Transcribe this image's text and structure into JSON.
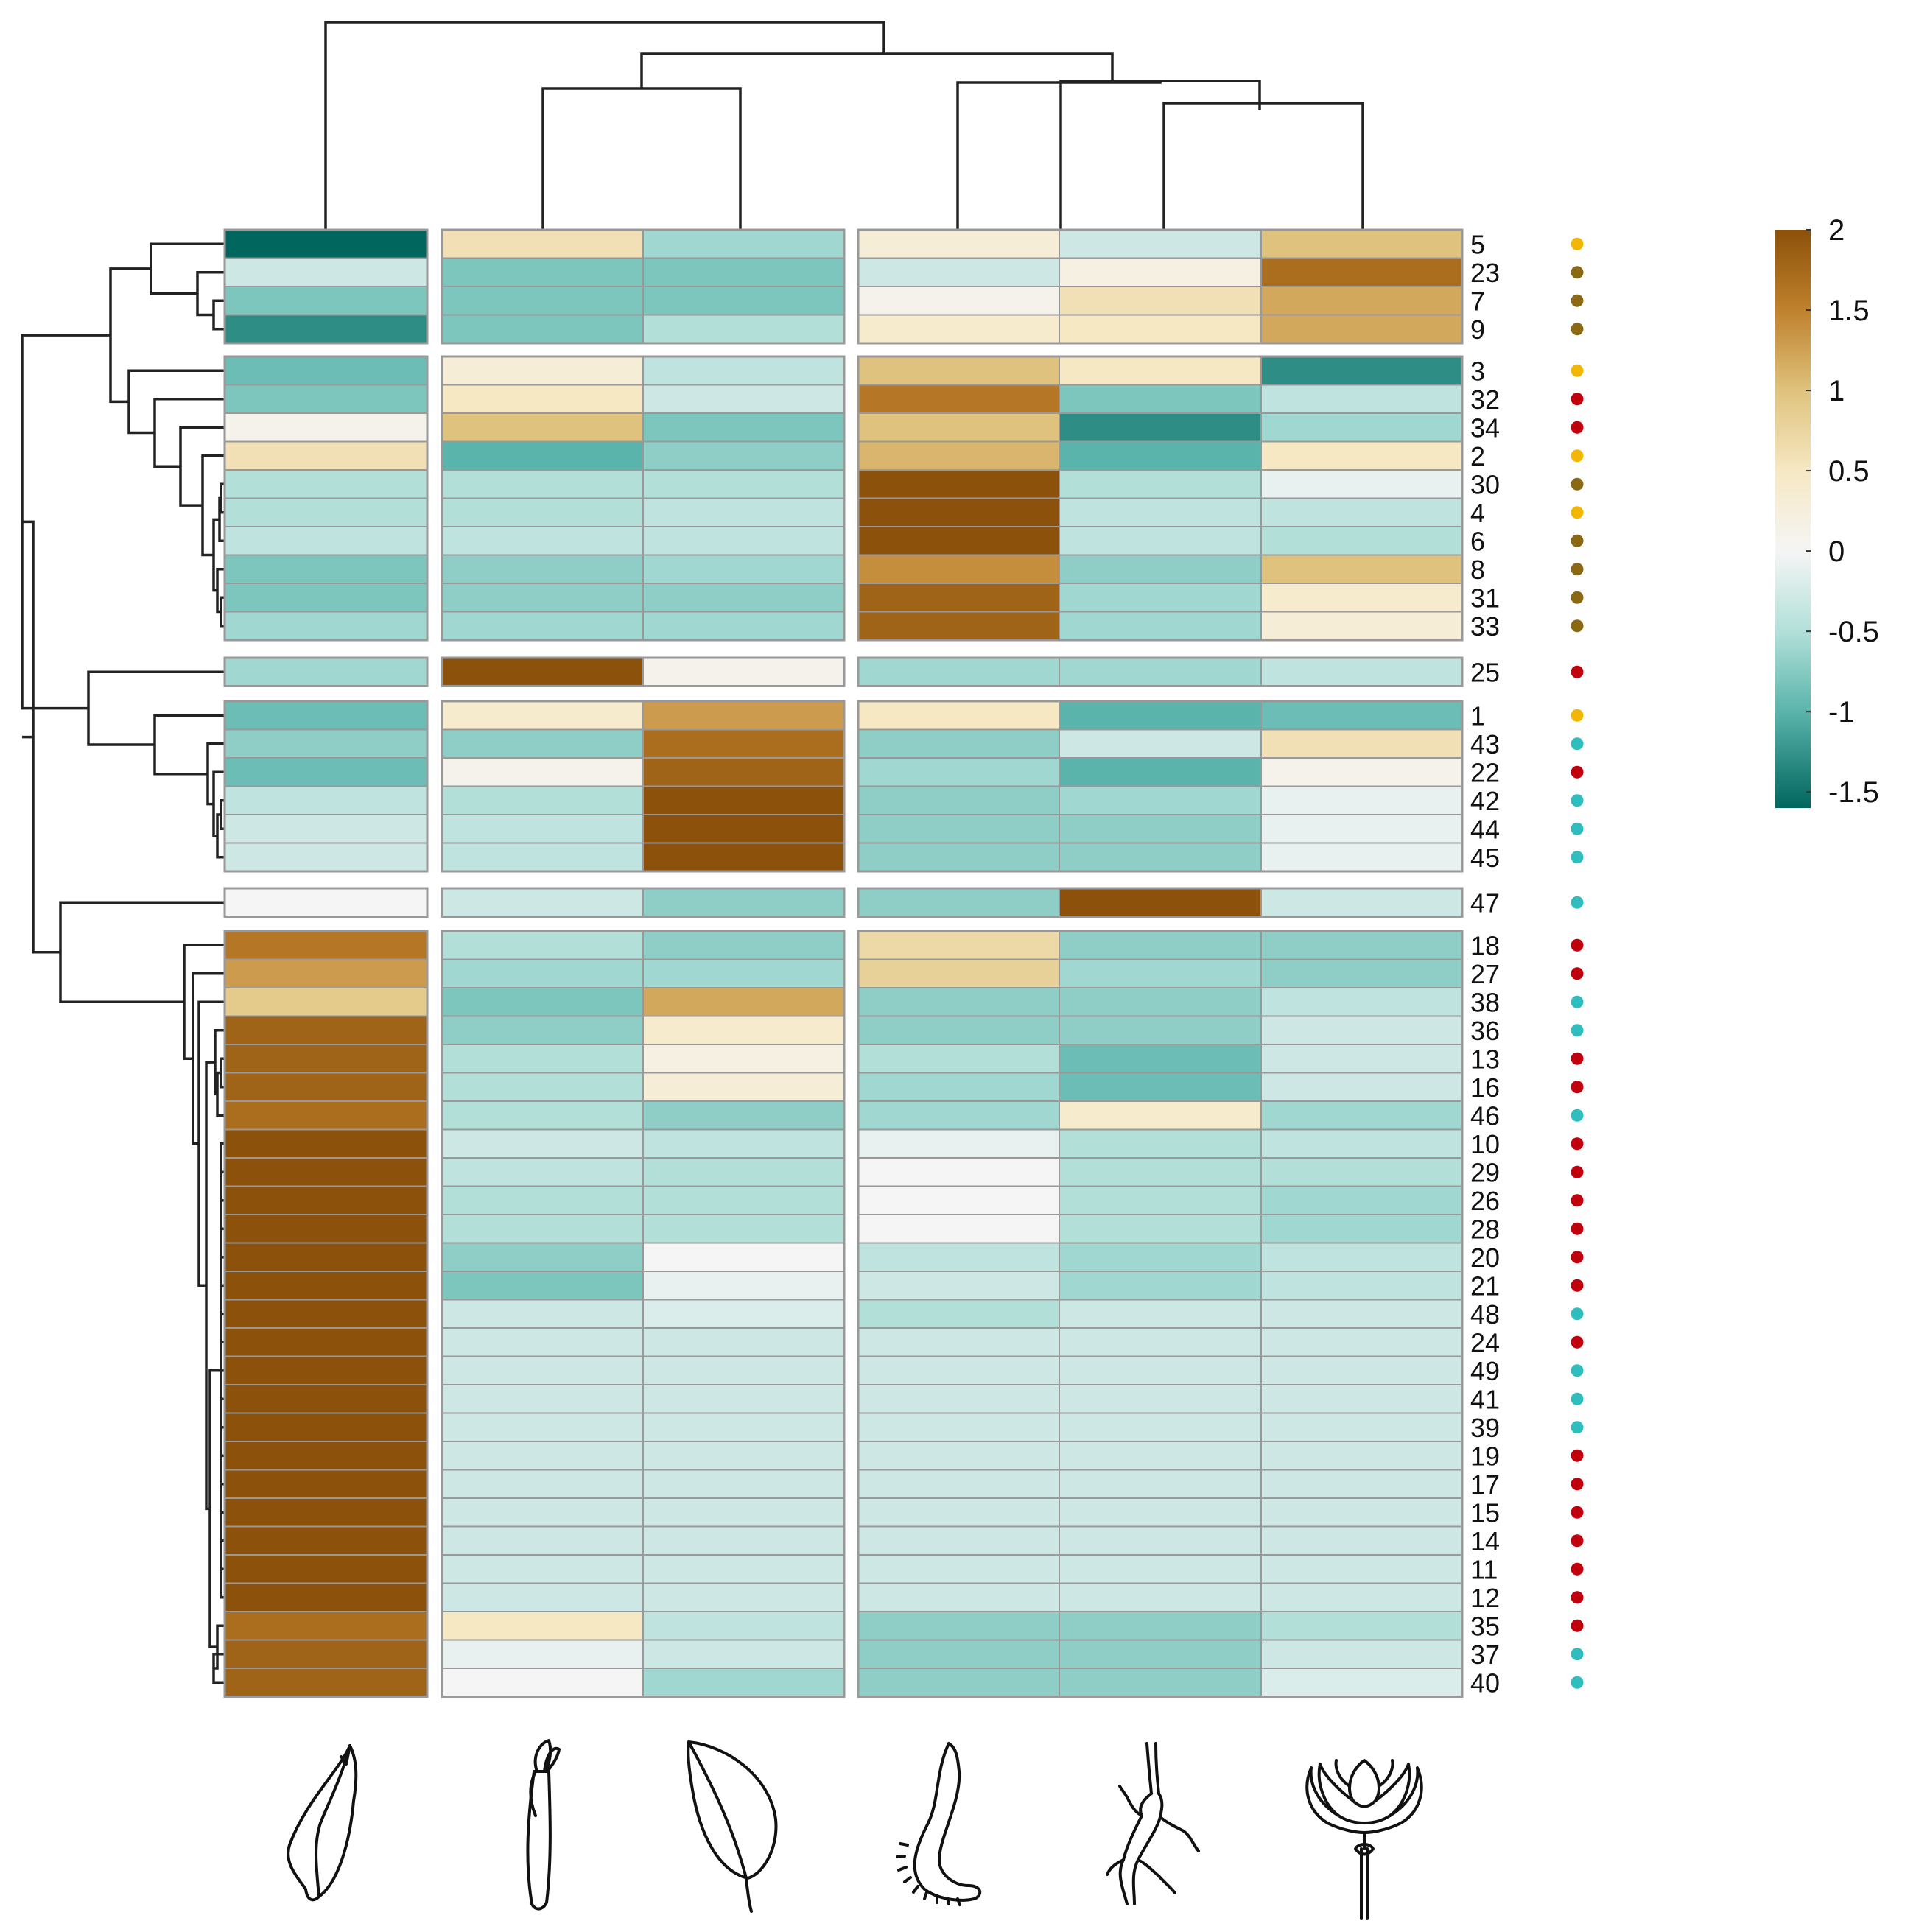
{
  "chart_data": {
    "type": "heatmap",
    "title": "",
    "xlabel": "",
    "ylabel": "",
    "columns": [
      {
        "key": "sample-1",
        "icon": "bract-icon"
      },
      {
        "key": "sample-2",
        "icon": "stamen-icon"
      },
      {
        "key": "sample-3",
        "icon": "leaf-icon"
      },
      {
        "key": "sample-4",
        "icon": "rhizome-icon"
      },
      {
        "key": "sample-5",
        "icon": "root-icon"
      },
      {
        "key": "sample-6",
        "icon": "flower-icon"
      }
    ],
    "column_groups": [
      [
        0
      ],
      [
        1,
        2
      ],
      [
        3,
        4,
        5
      ]
    ],
    "row_groups": [
      {
        "rows": [
          {
            "label": "5",
            "values": [
              -1.6,
              0.6,
              -0.6,
              0.3,
              -0.3,
              1.0
            ],
            "dot": "orange"
          },
          {
            "label": "23",
            "values": [
              -0.3,
              -0.8,
              -0.8,
              -0.3,
              0.2,
              1.7
            ],
            "dot": "olive"
          },
          {
            "label": "7",
            "values": [
              -0.8,
              -0.8,
              -0.8,
              0.1,
              0.6,
              1.2
            ],
            "dot": "olive"
          },
          {
            "label": "9",
            "values": [
              -1.3,
              -0.8,
              -0.5,
              0.4,
              0.5,
              1.2
            ],
            "dot": "olive"
          }
        ]
      },
      {
        "rows": [
          {
            "label": "3",
            "values": [
              -0.9,
              0.3,
              -0.4,
              1.0,
              0.5,
              -1.3
            ],
            "dot": "orange"
          },
          {
            "label": "32",
            "values": [
              -0.8,
              0.5,
              -0.3,
              1.6,
              -0.8,
              -0.4
            ],
            "dot": "red"
          },
          {
            "label": "34",
            "values": [
              0.1,
              1.0,
              -0.8,
              1.0,
              -1.3,
              -0.6
            ],
            "dot": "red"
          },
          {
            "label": "2",
            "values": [
              0.6,
              -1.0,
              -0.7,
              1.1,
              -1.0,
              0.5
            ],
            "dot": "orange"
          },
          {
            "label": "30",
            "values": [
              -0.5,
              -0.5,
              -0.5,
              2.0,
              -0.5,
              -0.1
            ],
            "dot": "olive"
          },
          {
            "label": "4",
            "values": [
              -0.5,
              -0.5,
              -0.4,
              2.0,
              -0.4,
              -0.4
            ],
            "dot": "orange"
          },
          {
            "label": "6",
            "values": [
              -0.4,
              -0.4,
              -0.4,
              2.0,
              -0.4,
              -0.5
            ],
            "dot": "olive"
          },
          {
            "label": "8",
            "values": [
              -0.8,
              -0.7,
              -0.6,
              1.4,
              -0.7,
              1.0
            ],
            "dot": "olive"
          },
          {
            "label": "31",
            "values": [
              -0.8,
              -0.7,
              -0.7,
              1.8,
              -0.6,
              0.4
            ],
            "dot": "olive"
          },
          {
            "label": "33",
            "values": [
              -0.6,
              -0.6,
              -0.6,
              1.8,
              -0.6,
              0.3
            ],
            "dot": "olive"
          }
        ]
      },
      {
        "rows": [
          {
            "label": "25",
            "values": [
              -0.6,
              2.0,
              0.1,
              -0.6,
              -0.6,
              -0.4
            ],
            "dot": "red"
          }
        ]
      },
      {
        "rows": [
          {
            "label": "1",
            "values": [
              -0.9,
              0.4,
              1.3,
              0.5,
              -1.0,
              -0.9
            ],
            "dot": "orange"
          },
          {
            "label": "43",
            "values": [
              -0.7,
              -0.7,
              1.7,
              -0.7,
              -0.3,
              0.6
            ],
            "dot": "teal"
          },
          {
            "label": "22",
            "values": [
              -0.9,
              0.1,
              1.8,
              -0.6,
              -1.0,
              0.1
            ],
            "dot": "red"
          },
          {
            "label": "42",
            "values": [
              -0.4,
              -0.5,
              2.0,
              -0.7,
              -0.6,
              -0.1
            ],
            "dot": "teal"
          },
          {
            "label": "44",
            "values": [
              -0.3,
              -0.4,
              2.0,
              -0.7,
              -0.7,
              -0.1
            ],
            "dot": "teal"
          },
          {
            "label": "45",
            "values": [
              -0.3,
              -0.4,
              2.0,
              -0.7,
              -0.7,
              -0.1
            ],
            "dot": "teal"
          }
        ]
      },
      {
        "rows": [
          {
            "label": "47",
            "values": [
              0.0,
              -0.3,
              -0.7,
              -0.7,
              2.0,
              -0.3
            ],
            "dot": "teal"
          }
        ]
      },
      {
        "rows": [
          {
            "label": "18",
            "values": [
              1.6,
              -0.5,
              -0.7,
              0.7,
              -0.7,
              -0.7
            ],
            "dot": "red"
          },
          {
            "label": "27",
            "values": [
              1.3,
              -0.6,
              -0.6,
              0.8,
              -0.6,
              -0.7
            ],
            "dot": "red"
          },
          {
            "label": "38",
            "values": [
              0.9,
              -0.8,
              1.2,
              -0.7,
              -0.7,
              -0.4
            ],
            "dot": "teal"
          },
          {
            "label": "36",
            "values": [
              1.8,
              -0.7,
              0.4,
              -0.7,
              -0.7,
              -0.3
            ],
            "dot": "teal"
          },
          {
            "label": "13",
            "values": [
              1.8,
              -0.5,
              0.2,
              -0.5,
              -0.9,
              -0.3
            ],
            "dot": "red"
          },
          {
            "label": "16",
            "values": [
              1.8,
              -0.5,
              0.3,
              -0.6,
              -0.9,
              -0.3
            ],
            "dot": "red"
          },
          {
            "label": "46",
            "values": [
              1.7,
              -0.5,
              -0.7,
              -0.6,
              0.4,
              -0.6
            ],
            "dot": "teal"
          },
          {
            "label": "10",
            "values": [
              2.0,
              -0.3,
              -0.4,
              -0.1,
              -0.5,
              -0.4
            ],
            "dot": "red"
          },
          {
            "label": "29",
            "values": [
              2.0,
              -0.4,
              -0.5,
              0.0,
              -0.5,
              -0.5
            ],
            "dot": "red"
          },
          {
            "label": "26",
            "values": [
              2.0,
              -0.5,
              -0.5,
              0.0,
              -0.5,
              -0.6
            ],
            "dot": "red"
          },
          {
            "label": "28",
            "values": [
              2.0,
              -0.5,
              -0.5,
              0.0,
              -0.5,
              -0.6
            ],
            "dot": "red"
          },
          {
            "label": "20",
            "values": [
              2.0,
              -0.7,
              0.0,
              -0.4,
              -0.6,
              -0.4
            ],
            "dot": "red"
          },
          {
            "label": "21",
            "values": [
              2.0,
              -0.8,
              -0.1,
              -0.3,
              -0.6,
              -0.4
            ],
            "dot": "red"
          },
          {
            "label": "48",
            "values": [
              2.0,
              -0.3,
              -0.2,
              -0.5,
              -0.3,
              -0.3
            ],
            "dot": "teal"
          },
          {
            "label": "24",
            "values": [
              2.0,
              -0.3,
              -0.3,
              -0.3,
              -0.3,
              -0.3
            ],
            "dot": "red"
          },
          {
            "label": "49",
            "values": [
              2.0,
              -0.3,
              -0.3,
              -0.3,
              -0.3,
              -0.3
            ],
            "dot": "teal"
          },
          {
            "label": "41",
            "values": [
              2.0,
              -0.3,
              -0.3,
              -0.3,
              -0.3,
              -0.3
            ],
            "dot": "teal"
          },
          {
            "label": "39",
            "values": [
              2.0,
              -0.3,
              -0.3,
              -0.3,
              -0.3,
              -0.3
            ],
            "dot": "teal"
          },
          {
            "label": "19",
            "values": [
              2.0,
              -0.3,
              -0.3,
              -0.3,
              -0.3,
              -0.3
            ],
            "dot": "red"
          },
          {
            "label": "17",
            "values": [
              2.0,
              -0.3,
              -0.3,
              -0.3,
              -0.3,
              -0.3
            ],
            "dot": "red"
          },
          {
            "label": "15",
            "values": [
              2.0,
              -0.3,
              -0.3,
              -0.3,
              -0.3,
              -0.3
            ],
            "dot": "red"
          },
          {
            "label": "14",
            "values": [
              2.0,
              -0.3,
              -0.3,
              -0.3,
              -0.3,
              -0.3
            ],
            "dot": "red"
          },
          {
            "label": "11",
            "values": [
              2.0,
              -0.3,
              -0.3,
              -0.3,
              -0.3,
              -0.3
            ],
            "dot": "red"
          },
          {
            "label": "12",
            "values": [
              2.0,
              -0.3,
              -0.3,
              -0.3,
              -0.3,
              -0.3
            ],
            "dot": "red"
          },
          {
            "label": "35",
            "values": [
              1.7,
              0.5,
              -0.4,
              -0.7,
              -0.7,
              -0.5
            ],
            "dot": "red"
          },
          {
            "label": "37",
            "values": [
              1.8,
              -0.1,
              -0.3,
              -0.7,
              -0.7,
              -0.3
            ],
            "dot": "teal"
          },
          {
            "label": "40",
            "values": [
              1.8,
              0.0,
              -0.6,
              -0.7,
              -0.7,
              -0.2
            ],
            "dot": "teal"
          }
        ]
      }
    ],
    "color_scale": {
      "min": -1.6,
      "max": 2.0,
      "stops": [
        {
          "v": -1.6,
          "c": "#01665e"
        },
        {
          "v": -1.0,
          "c": "#5ab4ac"
        },
        {
          "v": -0.5,
          "c": "#b2e0d9"
        },
        {
          "v": 0.0,
          "c": "#f5f5f5"
        },
        {
          "v": 0.5,
          "c": "#f6e8c3"
        },
        {
          "v": 1.0,
          "c": "#dfc27d"
        },
        {
          "v": 1.5,
          "c": "#bf812d"
        },
        {
          "v": 2.0,
          "c": "#8c510a"
        }
      ]
    },
    "legend": {
      "ticks": [
        "2",
        "1.5",
        "1",
        "0.5",
        "0",
        "-0.5",
        "-1",
        "-1.5"
      ],
      "tick_values": [
        2,
        1.5,
        1,
        0.5,
        0,
        -0.5,
        -1,
        -1.5
      ],
      "placement": "top-right"
    },
    "dot_colors": {
      "orange": "#f2b705",
      "olive": "#8b6914",
      "red": "#c0000c",
      "teal": "#2fbdbd"
    },
    "cell_border_color": "#999999",
    "dendrogram_color": "#222222"
  }
}
